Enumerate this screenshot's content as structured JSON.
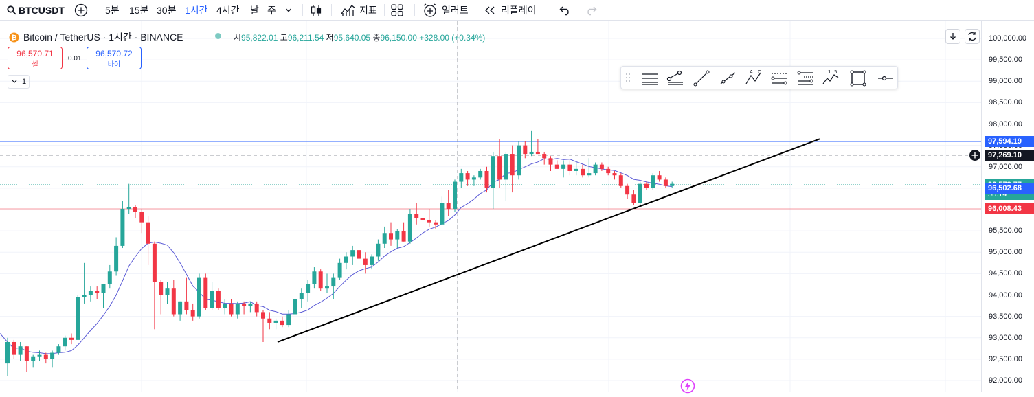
{
  "toolbar": {
    "symbol": "BTCUSDT",
    "intervals": [
      "5분",
      "15분",
      "30분",
      "1시간",
      "4시간",
      "날",
      "주"
    ],
    "active_interval": "1시간",
    "indicators_label": "지표",
    "alert_label": "얼러트",
    "replay_label": "리플레이"
  },
  "legend": {
    "title": "Bitcoin / TetherUS · 1시간 · BINANCE",
    "open_label": "시",
    "open": "95,822.01",
    "high_label": "고",
    "high": "96,211.54",
    "low_label": "저",
    "low": "95,640.05",
    "close_label": "종",
    "close": "96,150.00",
    "change": "+328.00 (+0.34%)"
  },
  "trade": {
    "sell_price": "96,570.71",
    "sell_label": "셀",
    "spread": "0.01",
    "buy_price": "96,570.72",
    "buy_label": "바이",
    "quantity": "1"
  },
  "price_axis": {
    "ticks": [
      "100,000.00",
      "99,500.00",
      "99,000.00",
      "98,500.00",
      "98,000.00",
      "97,500.00",
      "97,000.00",
      "96,500.00",
      "96,000.00",
      "95,500.00",
      "95,000.00",
      "94,500.00",
      "94,000.00",
      "93,500.00",
      "93,000.00",
      "92,500.00",
      "92,000.00"
    ],
    "labels": {
      "blue_line": "97,594.19",
      "crosshair": "97,269.10",
      "last_price": "96,578.77",
      "countdown": "58:14",
      "ma": "96,502.68",
      "red_line": "96,008.43"
    }
  },
  "colors": {
    "up": "#26a69a",
    "down": "#f23645",
    "blue_line": "#2962ff",
    "red_line": "#f23645",
    "ma": "#5b5bd6",
    "trend": "#000000"
  },
  "drawing_toolbar": [
    "horizontal-line",
    "horizontal-ray",
    "trend-line",
    "ray",
    "abcd-pattern",
    "parallel-channel",
    "fib-retracement",
    "elliott-wave",
    "rectangle",
    "horizontal-marker"
  ],
  "chart_data": {
    "type": "candlestick",
    "ylim": [
      92000,
      100000
    ],
    "levels": {
      "blue_line": 97594.19,
      "red_line": 96008.43,
      "crosshair": 97269.1,
      "last": 96578.77
    },
    "candles": [
      [
        92400,
        93000,
        92100,
        92900
      ],
      [
        92900,
        92950,
        92500,
        92600
      ],
      [
        92600,
        92900,
        92450,
        92800
      ],
      [
        92800,
        92800,
        92200,
        92450
      ],
      [
        92450,
        92600,
        92300,
        92550
      ],
      [
        92550,
        92700,
        92450,
        92600
      ],
      [
        92600,
        92650,
        92400,
        92500
      ],
      [
        92500,
        92700,
        92300,
        92650
      ],
      [
        92650,
        92850,
        92600,
        92800
      ],
      [
        92800,
        93050,
        92700,
        93000
      ],
      [
        93000,
        93100,
        92850,
        92950
      ],
      [
        92950,
        94000,
        92950,
        93950
      ],
      [
        93950,
        94750,
        93800,
        94000
      ],
      [
        94000,
        94200,
        93850,
        94100
      ],
      [
        94100,
        94200,
        93900,
        94050
      ],
      [
        94050,
        94250,
        93700,
        94250
      ],
      [
        94250,
        94700,
        94150,
        94550
      ],
      [
        94550,
        95350,
        94450,
        95150
      ],
      [
        95150,
        96200,
        95100,
        96000
      ],
      [
        96000,
        96600,
        95900,
        96050
      ],
      [
        96050,
        96100,
        95800,
        95950
      ],
      [
        95950,
        96000,
        95450,
        95700
      ],
      [
        95700,
        95850,
        94700,
        95200
      ],
      [
        95200,
        95250,
        93200,
        94300
      ],
      [
        94300,
        94350,
        93550,
        94000
      ],
      [
        94000,
        94300,
        93800,
        94150
      ],
      [
        94150,
        94350,
        93500,
        93550
      ],
      [
        93550,
        93850,
        93400,
        93850
      ],
      [
        93850,
        94400,
        93550,
        93650
      ],
      [
        93650,
        93800,
        93400,
        93500
      ],
      [
        93500,
        94500,
        93450,
        94400
      ],
      [
        94400,
        94500,
        93650,
        93700
      ],
      [
        93700,
        94300,
        93650,
        94100
      ],
      [
        94100,
        94150,
        93650,
        93700
      ],
      [
        93700,
        93900,
        93550,
        93800
      ],
      [
        93800,
        93900,
        93500,
        93550
      ],
      [
        93550,
        93850,
        93450,
        93800
      ],
      [
        93800,
        93850,
        93550,
        93750
      ],
      [
        93750,
        93850,
        93600,
        93800
      ],
      [
        93800,
        93850,
        93500,
        93600
      ],
      [
        93600,
        93650,
        92900,
        93450
      ],
      [
        93450,
        93600,
        93200,
        93350
      ],
      [
        93350,
        93450,
        93200,
        93400
      ],
      [
        93400,
        93500,
        93250,
        93300
      ],
      [
        93300,
        93650,
        93250,
        93550
      ],
      [
        93550,
        93950,
        93450,
        93900
      ],
      [
        93900,
        94150,
        93700,
        94050
      ],
      [
        94050,
        94350,
        93850,
        94250
      ],
      [
        94250,
        94650,
        94150,
        94550
      ],
      [
        94550,
        94600,
        94100,
        94150
      ],
      [
        94150,
        94500,
        94050,
        94200
      ],
      [
        94200,
        94500,
        93900,
        94400
      ],
      [
        94400,
        94850,
        94350,
        94750
      ],
      [
        94750,
        95000,
        94600,
        94900
      ],
      [
        94900,
        95150,
        94700,
        95050
      ],
      [
        95050,
        95200,
        94750,
        94850
      ],
      [
        94850,
        95000,
        94500,
        94700
      ],
      [
        94700,
        94950,
        94600,
        94900
      ],
      [
        94900,
        95300,
        94800,
        95200
      ],
      [
        95200,
        95600,
        95100,
        95450
      ],
      [
        95450,
        95700,
        95150,
        95300
      ],
      [
        95300,
        95550,
        95100,
        95500
      ],
      [
        95500,
        95700,
        95250,
        95250
      ],
      [
        95250,
        96000,
        95200,
        95900
      ],
      [
        95900,
        96150,
        95650,
        95800
      ],
      [
        95800,
        96050,
        95600,
        95750
      ],
      [
        95750,
        96000,
        95600,
        95700
      ],
      [
        95700,
        95750,
        95550,
        95650
      ],
      [
        95650,
        96300,
        95640,
        96150
      ],
      [
        96150,
        96450,
        95850,
        96000
      ],
      [
        96000,
        96700,
        95950,
        96650
      ],
      [
        96650,
        96950,
        96500,
        96850
      ],
      [
        96850,
        96900,
        96550,
        96700
      ],
      [
        96700,
        96800,
        96550,
        96750
      ],
      [
        96750,
        96950,
        96700,
        96900
      ],
      [
        96900,
        97000,
        96400,
        96500
      ],
      [
        96500,
        97350,
        96000,
        97250
      ],
      [
        97250,
        97650,
        96500,
        96700
      ],
      [
        96700,
        97350,
        96200,
        97300
      ],
      [
        97300,
        97500,
        96400,
        96800
      ],
      [
        96800,
        97600,
        96700,
        97500
      ],
      [
        97500,
        97600,
        97200,
        97300
      ],
      [
        97300,
        97850,
        97250,
        97350
      ],
      [
        97350,
        97650,
        97300,
        97300
      ],
      [
        97300,
        97350,
        97050,
        97200
      ],
      [
        97200,
        97250,
        96900,
        97050
      ],
      [
        97050,
        97150,
        96950,
        96950
      ],
      [
        96950,
        97150,
        96750,
        97050
      ],
      [
        97050,
        97150,
        96800,
        96900
      ],
      [
        96900,
        97100,
        96800,
        96950
      ],
      [
        96950,
        97050,
        96750,
        96800
      ],
      [
        96800,
        97200,
        96750,
        96850
      ],
      [
        96850,
        97100,
        96800,
        97050
      ],
      [
        97050,
        97100,
        96900,
        96950
      ],
      [
        96950,
        97000,
        96800,
        96850
      ],
      [
        96850,
        96900,
        96700,
        96800
      ],
      [
        96800,
        96850,
        96500,
        96550
      ],
      [
        96550,
        96600,
        96250,
        96350
      ],
      [
        96350,
        96450,
        96100,
        96150
      ],
      [
        96150,
        96650,
        96100,
        96600
      ],
      [
        96600,
        96650,
        96450,
        96500
      ],
      [
        96500,
        96850,
        96450,
        96800
      ],
      [
        96800,
        96900,
        96650,
        96700
      ],
      [
        96700,
        96750,
        96500,
        96550
      ],
      [
        96550,
        96650,
        96500,
        96600
      ]
    ]
  }
}
